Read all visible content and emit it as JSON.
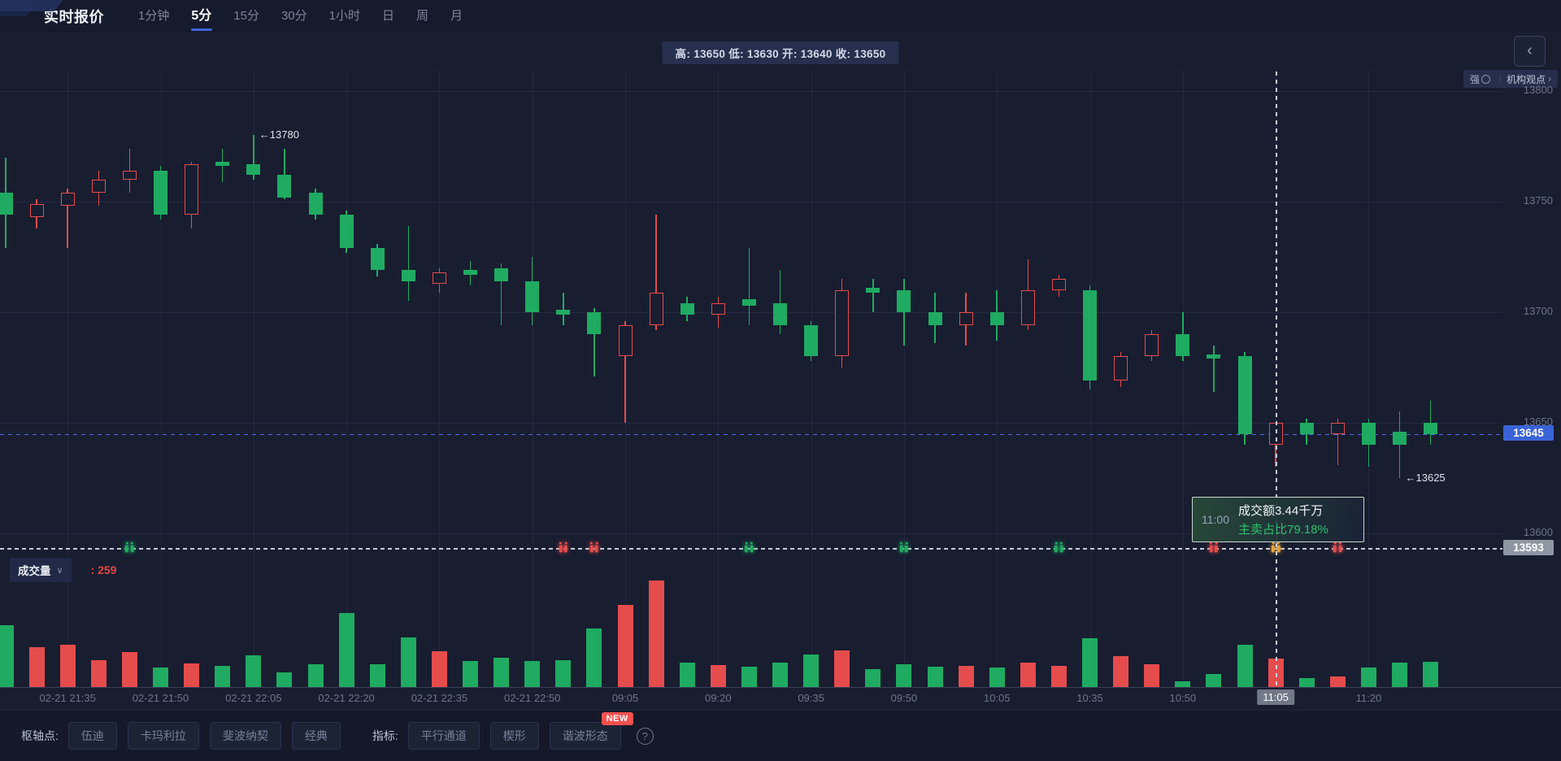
{
  "app": {
    "title": "实时报价"
  },
  "topbar": {
    "tabs": [
      {
        "label": "1分钟",
        "active": false
      },
      {
        "label": "5分",
        "active": true
      },
      {
        "label": "15分",
        "active": false
      },
      {
        "label": "30分",
        "active": false
      },
      {
        "label": "1小时",
        "active": false
      },
      {
        "label": "日",
        "active": false
      },
      {
        "label": "周",
        "active": false
      },
      {
        "label": "月",
        "active": false
      }
    ]
  },
  "quote_bar": {
    "text": "高: 13650 低: 13630 开: 13640 收: 13650"
  },
  "side_panel": {
    "collapse_icon": "‹",
    "strength_label": "强",
    "org_view_label": "机构观点",
    "org_view_arrow": "›"
  },
  "volume_header": {
    "name": "成交量",
    "chevron": "∨",
    "value": ": 259"
  },
  "tooltip": {
    "time": "11:00",
    "turnover": "成交额3.44千万",
    "sell_ratio": "主卖占比79.18%"
  },
  "toolbar": {
    "pivot_label": "枢轴点:",
    "pivot_buttons": [
      "伍迪",
      "卡玛利拉",
      "斐波纳契",
      "经典"
    ],
    "indicator_label": "指标:",
    "indicator_buttons": [
      "平行通道",
      "楔形",
      "谐波形态"
    ],
    "new_badge": "NEW",
    "new_badge_on": "谐波形态",
    "help": "?"
  },
  "colors": {
    "background": "#181d30",
    "up": "#e54c4c",
    "down": "#1fab61",
    "accent_blue": "#3b63d8",
    "ref_gray": "#8f96a3",
    "marker_yellow": "#e6a23c"
  },
  "chart_data": {
    "type": "candlestick+volume",
    "period": "5分",
    "price_ticks": [
      13800,
      13750,
      13700,
      13650,
      13600
    ],
    "ylim": [
      13585,
      13810
    ],
    "last_price": 13645,
    "ref_price": 13593,
    "time_labels": [
      {
        "candle": 3,
        "label": "02-21 21:35"
      },
      {
        "candle": 6,
        "label": "02-21 21:50"
      },
      {
        "candle": 9,
        "label": "02-21 22:05"
      },
      {
        "candle": 12,
        "label": "02-21 22:20"
      },
      {
        "candle": 15,
        "label": "02-21 22:35"
      },
      {
        "candle": 18,
        "label": "02-21 22:50"
      },
      {
        "candle": 21,
        "label": "09:05"
      },
      {
        "candle": 24,
        "label": "09:20"
      },
      {
        "candle": 27,
        "label": "09:35"
      },
      {
        "candle": 30,
        "label": "09:50"
      },
      {
        "candle": 33,
        "label": "10:05"
      },
      {
        "candle": 36,
        "label": "10:35"
      },
      {
        "candle": 39,
        "label": "10:50"
      },
      {
        "candle": 42,
        "label": "11:05",
        "highlight": true
      },
      {
        "candle": 45,
        "label": "11:20"
      }
    ],
    "crosshair": {
      "candle": 42,
      "time": "11:05"
    },
    "annotations": [
      {
        "text": "←13780",
        "candle": 9,
        "price": 13780
      },
      {
        "text": "←13625",
        "candle": 46,
        "price": 13625
      }
    ],
    "markers": [
      {
        "candle": 5,
        "color": "#1fab61"
      },
      {
        "candle": 19,
        "color": "#e54c4c"
      },
      {
        "candle": 20,
        "color": "#e54c4c"
      },
      {
        "candle": 25,
        "color": "#1fab61"
      },
      {
        "candle": 30,
        "color": "#1fab61"
      },
      {
        "candle": 35,
        "color": "#1fab61"
      },
      {
        "candle": 40,
        "color": "#e54c4c"
      },
      {
        "candle": 42,
        "color": "#e6a23c"
      },
      {
        "candle": 44,
        "color": "#e54c4c"
      }
    ],
    "candles": [
      [
        13754,
        13770,
        13729,
        13744
      ],
      [
        13743,
        13751,
        13738,
        13749
      ],
      [
        13748,
        13756,
        13729,
        13754
      ],
      [
        13754,
        13764,
        13748,
        13760
      ],
      [
        13760,
        13774,
        13754,
        13764
      ],
      [
        13764,
        13766,
        13742,
        13744
      ],
      [
        13744,
        13768,
        13738,
        13767
      ],
      [
        13768,
        13774,
        13759,
        13766
      ],
      [
        13767,
        13780,
        13760,
        13762
      ],
      [
        13762,
        13774,
        13751,
        13752
      ],
      [
        13754,
        13756,
        13742,
        13744
      ],
      [
        13744,
        13746,
        13727,
        13729
      ],
      [
        13729,
        13731,
        13716,
        13719
      ],
      [
        13719,
        13739,
        13705,
        13714
      ],
      [
        13713,
        13720,
        13709,
        13718
      ],
      [
        13719,
        13723,
        13712,
        13717
      ],
      [
        13720,
        13722,
        13694,
        13714
      ],
      [
        13714,
        13725,
        13694,
        13700
      ],
      [
        13701,
        13709,
        13694,
        13699
      ],
      [
        13700,
        13702,
        13671,
        13690
      ],
      [
        13680,
        13696,
        13650,
        13694
      ],
      [
        13694,
        13744,
        13692,
        13709
      ],
      [
        13704,
        13707,
        13696,
        13699
      ],
      [
        13699,
        13707,
        13693,
        13704
      ],
      [
        13706,
        13729,
        13694,
        13703
      ],
      [
        13704,
        13719,
        13690,
        13694
      ],
      [
        13694,
        13696,
        13678,
        13680
      ],
      [
        13680,
        13715,
        13675,
        13710
      ],
      [
        13711,
        13715,
        13700,
        13709
      ],
      [
        13710,
        13715,
        13685,
        13700
      ],
      [
        13700,
        13709,
        13686,
        13694
      ],
      [
        13694,
        13709,
        13685,
        13700
      ],
      [
        13700,
        13710,
        13687,
        13694
      ],
      [
        13694,
        13724,
        13692,
        13710
      ],
      [
        13710,
        13717,
        13707,
        13715
      ],
      [
        13710,
        13712,
        13665,
        13669
      ],
      [
        13669,
        13682,
        13666,
        13680
      ],
      [
        13680,
        13692,
        13678,
        13690
      ],
      [
        13690,
        13700,
        13678,
        13680
      ],
      [
        13681,
        13685,
        13664,
        13679
      ],
      [
        13680,
        13682,
        13640,
        13645
      ],
      [
        13640,
        13650,
        13630,
        13650
      ],
      [
        13650,
        13652,
        13640,
        13645
      ],
      [
        13645,
        13652,
        13631,
        13650
      ],
      [
        13650,
        13652,
        13630,
        13640
      ],
      [
        13646,
        13655,
        13625,
        13640
      ],
      [
        13650,
        13660,
        13640,
        13645
      ]
    ],
    "volumes": [
      562,
      363,
      385,
      244,
      318,
      178,
      215,
      192,
      289,
      133,
      207,
      673,
      207,
      451,
      326,
      237,
      266,
      237,
      244,
      533,
      747,
      969,
      222,
      200,
      185,
      222,
      296,
      333,
      163,
      207,
      185,
      192,
      178,
      222,
      192,
      444,
      281,
      207,
      52,
      118,
      385,
      259,
      81,
      96,
      178,
      222,
      229
    ],
    "current_volume": 259
  }
}
